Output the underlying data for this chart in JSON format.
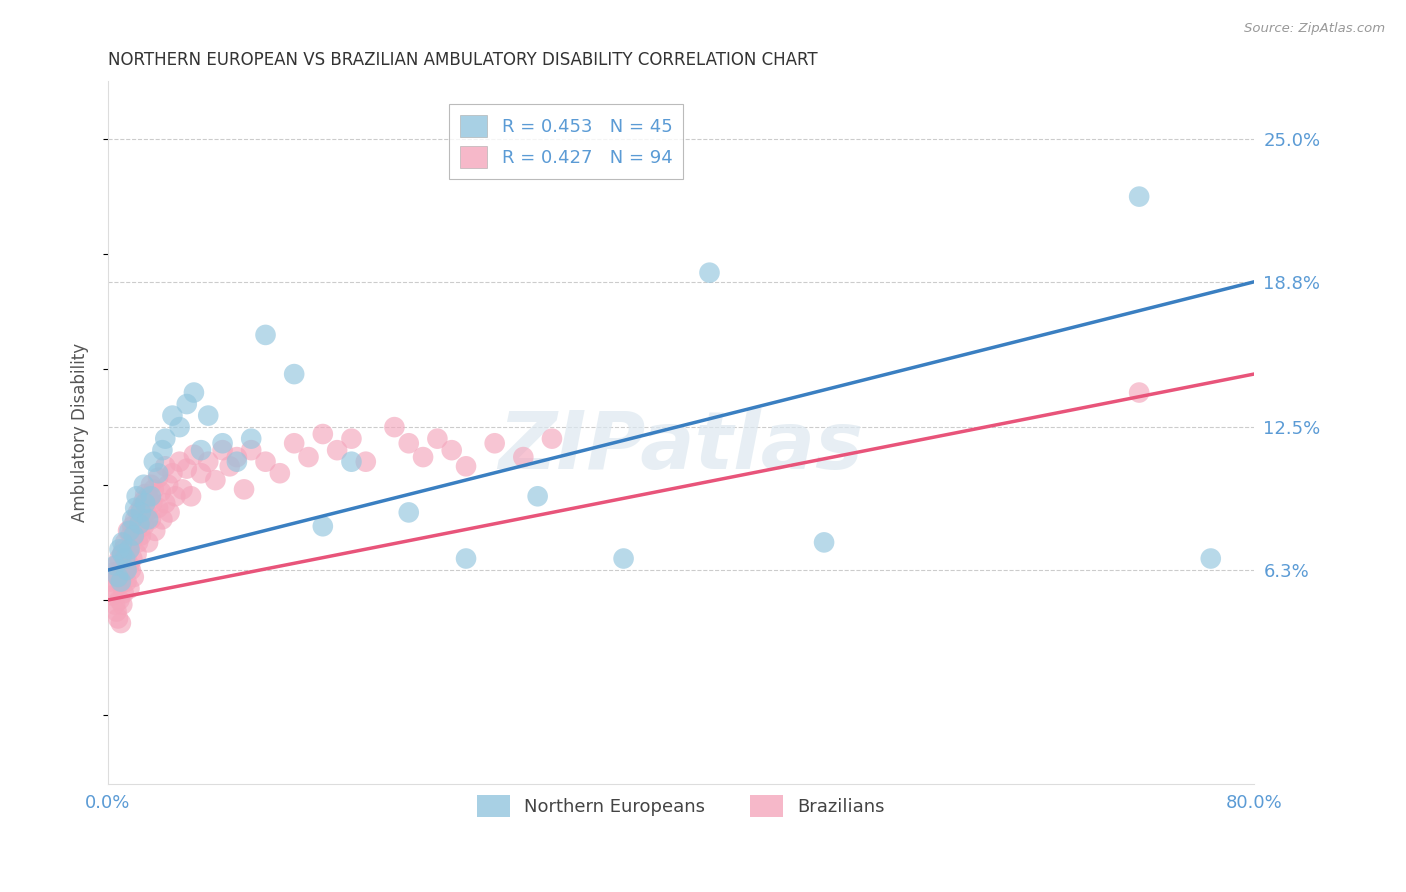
{
  "title": "NORTHERN EUROPEAN VS BRAZILIAN AMBULATORY DISABILITY CORRELATION CHART",
  "source": "Source: ZipAtlas.com",
  "xlabel": "",
  "ylabel": "Ambulatory Disability",
  "xlim": [
    0,
    0.8
  ],
  "ylim": [
    -0.03,
    0.275
  ],
  "ytick_right_values": [
    0.063,
    0.125,
    0.188,
    0.25
  ],
  "ytick_right_labels": [
    "6.3%",
    "12.5%",
    "18.8%",
    "25.0%"
  ],
  "blue_color": "#92c5de",
  "pink_color": "#f4a6bc",
  "blue_line_color": "#3a7fc1",
  "pink_line_color": "#e8547a",
  "legend_blue_label": "R = 0.453   N = 45",
  "legend_pink_label": "R = 0.427   N = 94",
  "ne_label": "Northern Europeans",
  "br_label": "Brazilians",
  "watermark": "ZIPatlas",
  "background_color": "#ffffff",
  "grid_color": "#cccccc",
  "blue_line": {
    "x0": 0.0,
    "y0": 0.063,
    "x1": 0.8,
    "y1": 0.188
  },
  "pink_line": {
    "x0": 0.0,
    "y0": 0.05,
    "x1": 0.8,
    "y1": 0.148
  },
  "blue_x": [
    0.005,
    0.007,
    0.008,
    0.009,
    0.01,
    0.01,
    0.012,
    0.013,
    0.015,
    0.015,
    0.017,
    0.018,
    0.019,
    0.02,
    0.022,
    0.023,
    0.025,
    0.026,
    0.028,
    0.03,
    0.032,
    0.035,
    0.038,
    0.04,
    0.045,
    0.05,
    0.055,
    0.06,
    0.065,
    0.07,
    0.08,
    0.09,
    0.1,
    0.11,
    0.13,
    0.15,
    0.17,
    0.21,
    0.25,
    0.3,
    0.36,
    0.42,
    0.5,
    0.72,
    0.77
  ],
  "blue_y": [
    0.065,
    0.06,
    0.072,
    0.058,
    0.07,
    0.075,
    0.068,
    0.063,
    0.08,
    0.072,
    0.085,
    0.078,
    0.09,
    0.095,
    0.083,
    0.088,
    0.1,
    0.092,
    0.085,
    0.095,
    0.11,
    0.105,
    0.115,
    0.12,
    0.13,
    0.125,
    0.135,
    0.14,
    0.115,
    0.13,
    0.118,
    0.11,
    0.12,
    0.165,
    0.148,
    0.082,
    0.11,
    0.088,
    0.068,
    0.095,
    0.068,
    0.192,
    0.075,
    0.225,
    0.068
  ],
  "pink_x": [
    0.002,
    0.003,
    0.004,
    0.005,
    0.005,
    0.006,
    0.006,
    0.007,
    0.007,
    0.008,
    0.008,
    0.009,
    0.009,
    0.009,
    0.01,
    0.01,
    0.01,
    0.011,
    0.011,
    0.012,
    0.012,
    0.013,
    0.013,
    0.014,
    0.015,
    0.015,
    0.015,
    0.016,
    0.016,
    0.017,
    0.017,
    0.018,
    0.018,
    0.019,
    0.02,
    0.02,
    0.021,
    0.021,
    0.022,
    0.023,
    0.023,
    0.024,
    0.025,
    0.025,
    0.026,
    0.027,
    0.028,
    0.028,
    0.03,
    0.03,
    0.031,
    0.032,
    0.033,
    0.035,
    0.035,
    0.037,
    0.038,
    0.04,
    0.04,
    0.042,
    0.043,
    0.045,
    0.047,
    0.05,
    0.052,
    0.055,
    0.058,
    0.06,
    0.065,
    0.07,
    0.075,
    0.08,
    0.085,
    0.09,
    0.095,
    0.1,
    0.11,
    0.12,
    0.13,
    0.14,
    0.15,
    0.16,
    0.17,
    0.18,
    0.2,
    0.21,
    0.22,
    0.23,
    0.24,
    0.25,
    0.27,
    0.29,
    0.31,
    0.72
  ],
  "pink_y": [
    0.058,
    0.052,
    0.062,
    0.055,
    0.048,
    0.065,
    0.045,
    0.06,
    0.042,
    0.068,
    0.05,
    0.063,
    0.057,
    0.04,
    0.07,
    0.06,
    0.048,
    0.072,
    0.053,
    0.075,
    0.063,
    0.068,
    0.058,
    0.08,
    0.072,
    0.065,
    0.055,
    0.078,
    0.063,
    0.082,
    0.068,
    0.077,
    0.06,
    0.085,
    0.08,
    0.07,
    0.088,
    0.075,
    0.083,
    0.09,
    0.078,
    0.086,
    0.093,
    0.082,
    0.096,
    0.088,
    0.095,
    0.075,
    0.1,
    0.085,
    0.092,
    0.098,
    0.08,
    0.103,
    0.09,
    0.097,
    0.085,
    0.108,
    0.092,
    0.1,
    0.088,
    0.105,
    0.095,
    0.11,
    0.098,
    0.107,
    0.095,
    0.113,
    0.105,
    0.11,
    0.102,
    0.115,
    0.108,
    0.112,
    0.098,
    0.115,
    0.11,
    0.105,
    0.118,
    0.112,
    0.122,
    0.115,
    0.12,
    0.11,
    0.125,
    0.118,
    0.112,
    0.12,
    0.115,
    0.108,
    0.118,
    0.112,
    0.12,
    0.14
  ]
}
